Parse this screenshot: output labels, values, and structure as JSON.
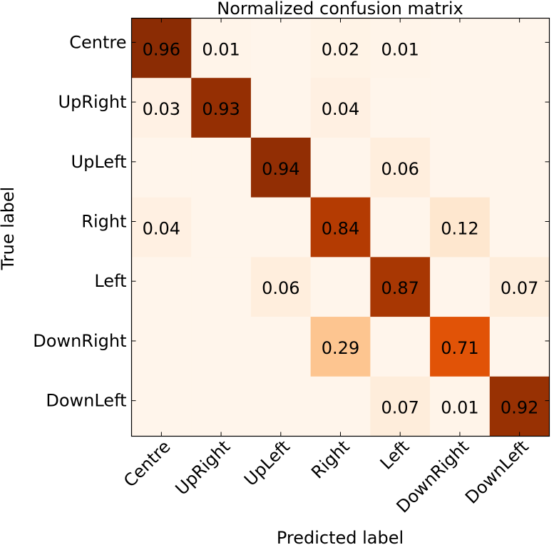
{
  "chart_data": {
    "type": "heatmap",
    "title": "Normalized confusion matrix",
    "xlabel": "Predicted label",
    "ylabel": "True label",
    "colormap": "Oranges",
    "vmin": 0,
    "vmax": 1,
    "row_labels": [
      "Centre",
      "UpRight",
      "UpLeft",
      "Right",
      "Left",
      "DownRight",
      "DownLeft"
    ],
    "col_labels": [
      "Centre",
      "UpRight",
      "UpLeft",
      "Right",
      "Left",
      "DownRight",
      "DownLeft"
    ],
    "values": [
      [
        0.96,
        0.01,
        0.0,
        0.02,
        0.01,
        0.0,
        0.0
      ],
      [
        0.03,
        0.93,
        0.0,
        0.04,
        0.0,
        0.0,
        0.0
      ],
      [
        0.0,
        0.0,
        0.94,
        0.0,
        0.06,
        0.0,
        0.0
      ],
      [
        0.04,
        0.0,
        0.0,
        0.84,
        0.0,
        0.12,
        0.0
      ],
      [
        0.0,
        0.0,
        0.06,
        0.0,
        0.87,
        0.0,
        0.07
      ],
      [
        0.0,
        0.0,
        0.0,
        0.29,
        0.0,
        0.71,
        0.0
      ],
      [
        0.0,
        0.0,
        0.0,
        0.0,
        0.07,
        0.01,
        0.92
      ]
    ],
    "annotations": [
      [
        "0.96",
        "0.01",
        "",
        "0.02",
        "0.01",
        "",
        ""
      ],
      [
        "0.03",
        "0.93",
        "",
        "0.04",
        "",
        "",
        ""
      ],
      [
        "",
        "",
        "0.94",
        "",
        "0.06",
        "",
        ""
      ],
      [
        "0.04",
        "",
        "",
        "0.84",
        "",
        "0.12",
        ""
      ],
      [
        "",
        "",
        "0.06",
        "",
        "0.87",
        "",
        "0.07"
      ],
      [
        "",
        "",
        "",
        "0.29",
        "",
        "0.71",
        ""
      ],
      [
        "",
        "",
        "",
        "",
        "0.07",
        "0.01",
        "0.92"
      ]
    ]
  }
}
